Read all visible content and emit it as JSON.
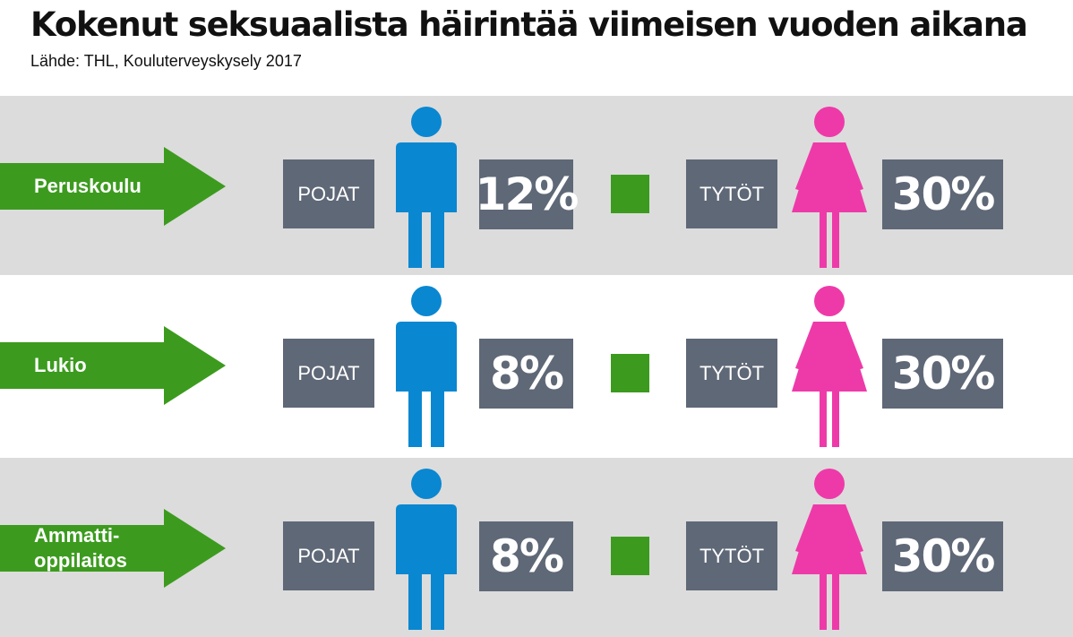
{
  "title": "Kokenut seksuaalista häirintää viimeisen vuoden aikana",
  "source": "Lähde: THL, Kouluterveyskysely 2017",
  "colors": {
    "arrow": "#3c9b1e",
    "label_box": "#5f6877",
    "boy": "#0a87d1",
    "girl": "#ee3aa9",
    "separator": "#3c9b1e",
    "row_shade": "#dcdcdc"
  },
  "icons": {
    "boy": "male-person-icon",
    "girl": "female-person-icon",
    "arrow": "arrow-right-icon"
  },
  "rows": [
    {
      "category": "Peruskoulu",
      "boys_label": "POJAT",
      "boys_value": "12%",
      "girls_label": "TYTÖT",
      "girls_value": "30%"
    },
    {
      "category": "Lukio",
      "boys_label": "POJAT",
      "boys_value": "8%",
      "girls_label": "TYTÖT",
      "girls_value": "30%"
    },
    {
      "category": "Ammatti-\noppilaitos",
      "boys_label": "POJAT",
      "boys_value": "8%",
      "girls_label": "TYTÖT",
      "girls_value": "30%"
    }
  ],
  "chart_data": {
    "type": "table",
    "title": "Kokenut seksuaalista häirintää viimeisen vuoden aikana",
    "source": "Lähde: THL, Kouluterveyskysely 2017",
    "categories": [
      "Peruskoulu",
      "Lukio",
      "Ammatti-oppilaitos"
    ],
    "series": [
      {
        "name": "POJAT",
        "values": [
          12,
          8,
          8
        ],
        "unit": "%"
      },
      {
        "name": "TYTÖT",
        "values": [
          30,
          30,
          30
        ],
        "unit": "%"
      }
    ]
  }
}
